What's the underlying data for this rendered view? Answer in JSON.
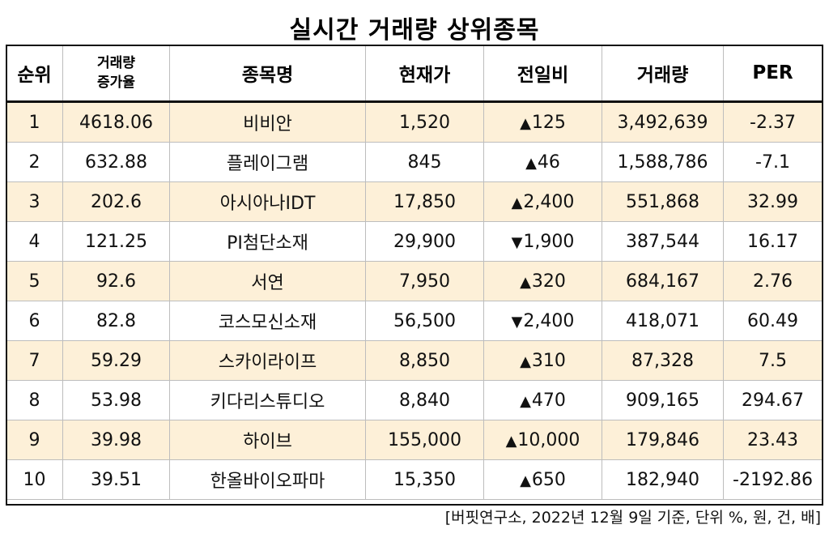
{
  "title": "실시간 거래량 상위종목",
  "headers": {
    "rank": "순위",
    "volume_increase_line1": "거래량",
    "volume_increase_line2": "증가율",
    "name": "종목명",
    "price": "현재가",
    "change": "전일비",
    "volume": "거래량",
    "per": "PER"
  },
  "arrows": {
    "up": "▲",
    "down": "▼"
  },
  "colors": {
    "up": "#e00000",
    "down": "#1a1ad6",
    "odd_row_bg": "#fdf0d8"
  },
  "rows": [
    {
      "rank": "1",
      "increase": "4618.06",
      "name": "비비안",
      "price": "1,520",
      "direction": "up",
      "change": "125",
      "volume": "3,492,639",
      "per": "-2.37"
    },
    {
      "rank": "2",
      "increase": "632.88",
      "name": "플레이그램",
      "price": "845",
      "direction": "up",
      "change": "46",
      "volume": "1,588,786",
      "per": "-7.1"
    },
    {
      "rank": "3",
      "increase": "202.6",
      "name": "아시아나IDT",
      "price": "17,850",
      "direction": "up",
      "change": "2,400",
      "volume": "551,868",
      "per": "32.99"
    },
    {
      "rank": "4",
      "increase": "121.25",
      "name": "PI첨단소재",
      "price": "29,900",
      "direction": "down",
      "change": "1,900",
      "volume": "387,544",
      "per": "16.17"
    },
    {
      "rank": "5",
      "increase": "92.6",
      "name": "서연",
      "price": "7,950",
      "direction": "up",
      "change": "320",
      "volume": "684,167",
      "per": "2.76"
    },
    {
      "rank": "6",
      "increase": "82.8",
      "name": "코스모신소재",
      "price": "56,500",
      "direction": "down",
      "change": "2,400",
      "volume": "418,071",
      "per": "60.49"
    },
    {
      "rank": "7",
      "increase": "59.29",
      "name": "스카이라이프",
      "price": "8,850",
      "direction": "up",
      "change": "310",
      "volume": "87,328",
      "per": "7.5"
    },
    {
      "rank": "8",
      "increase": "53.98",
      "name": "키다리스튜디오",
      "price": "8,840",
      "direction": "up",
      "change": "470",
      "volume": "909,165",
      "per": "294.67"
    },
    {
      "rank": "9",
      "increase": "39.98",
      "name": "하이브",
      "price": "155,000",
      "direction": "up",
      "change": "10,000",
      "volume": "179,846",
      "per": "23.43"
    },
    {
      "rank": "10",
      "increase": "39.51",
      "name": "한올바이오파마",
      "price": "15,350",
      "direction": "up",
      "change": "650",
      "volume": "182,940",
      "per": "-2192.86"
    }
  ],
  "source": "[버핏연구소, 2022년 12월 9일 기준, 단위 %, 원, 건, 배]"
}
